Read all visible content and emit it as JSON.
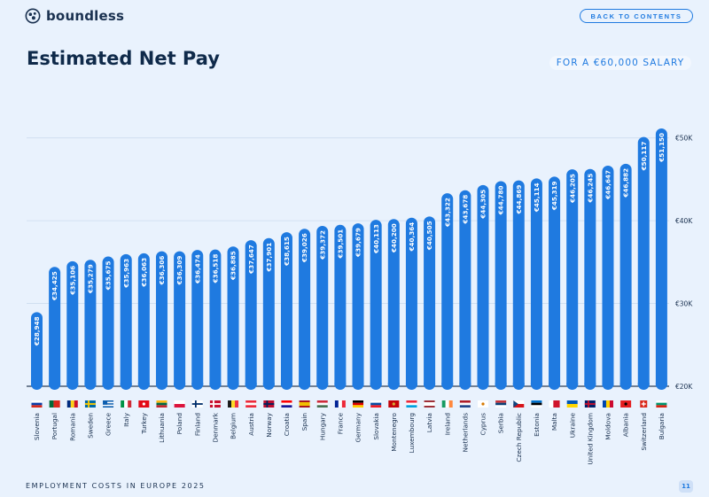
{
  "brand": {
    "name": "boundless"
  },
  "header": {
    "back_label": "BACK TO CONTENTS"
  },
  "page": {
    "title": "Estimated Net Pay",
    "subtitle": "FOR A €60,000 SALARY"
  },
  "footer": {
    "label": "EMPLOYMENT COSTS IN EUROPE 2025",
    "page_number": "11"
  },
  "colors": {
    "bar": "#1f7ae0",
    "background": "#e9f2fd",
    "text": "#0f2a4a",
    "accent": "#1f7ae0"
  },
  "chart_data": {
    "type": "bar",
    "title": "Estimated Net Pay",
    "subtitle": "FOR A €60,000 SALARY",
    "xlabel": "",
    "ylabel": "",
    "ylim": [
      20000,
      52000
    ],
    "yticks": [
      20000,
      30000,
      40000,
      50000
    ],
    "ytick_labels": [
      "€20K",
      "€30K",
      "€40K",
      "€50K"
    ],
    "categories": [
      "Slovenia",
      "Portugal",
      "Romania",
      "Sweden",
      "Greece",
      "Italy",
      "Turkey",
      "Lithuania",
      "Poland",
      "Finland",
      "Denmark",
      "Belgium",
      "Austria",
      "Norway",
      "Croatia",
      "Spain",
      "Hungary",
      "France",
      "Germany",
      "Slovakia",
      "Montenegro",
      "Luxembourg",
      "Latvia",
      "Ireland",
      "Netherlands",
      "Cyprus",
      "Serbia",
      "Czech Republic",
      "Estonia",
      "Malta",
      "Ukraine",
      "United Kingdom",
      "Moldova",
      "Albania",
      "Switzerland",
      "Bulgaria"
    ],
    "values": [
      28948,
      34425,
      35106,
      35279,
      35675,
      35963,
      36063,
      36306,
      36309,
      36474,
      36518,
      36885,
      37647,
      37901,
      38615,
      39026,
      39372,
      39501,
      39679,
      40113,
      40200,
      40364,
      40505,
      43322,
      43678,
      44305,
      44780,
      44869,
      45114,
      45319,
      46205,
      46245,
      46647,
      46882,
      50117,
      51150
    ],
    "value_labels": [
      "€28,948",
      "€34,425",
      "€35,106",
      "€35,279",
      "€35,675",
      "€35,963",
      "€36,063",
      "€36,306",
      "€36,309",
      "€36,474",
      "€36,518",
      "€36,885",
      "€37,647",
      "€37,901",
      "€38,615",
      "€39,026",
      "€39,372",
      "€39,501",
      "€39,679",
      "€40,113",
      "€40,200",
      "€40,364",
      "€40,505",
      "€43,322",
      "€43,678",
      "€44,305",
      "€44,780",
      "€44,869",
      "€45,114",
      "€45,319",
      "€46,205",
      "€46,245",
      "€46,647",
      "€46,882",
      "€50,117",
      "€51,150"
    ],
    "flags": [
      {
        "type": "h",
        "colors": [
          "#ffffff",
          "#0b3ea8",
          "#d52b1e"
        ]
      },
      {
        "type": "vsplit",
        "colors": [
          "#046a38",
          "#da291c"
        ]
      },
      {
        "type": "v",
        "colors": [
          "#002b7f",
          "#fcd116",
          "#ce1126"
        ]
      },
      {
        "type": "nordic",
        "colors": [
          "#006aa7",
          "#fecc00"
        ]
      },
      {
        "type": "stripes",
        "colors": [
          "#0d5eaf",
          "#ffffff"
        ]
      },
      {
        "type": "v",
        "colors": [
          "#009246",
          "#ffffff",
          "#ce2b37"
        ]
      },
      {
        "type": "solid",
        "colors": [
          "#e30a17",
          "#ffffff"
        ]
      },
      {
        "type": "h",
        "colors": [
          "#fdb913",
          "#006a44",
          "#c1272d"
        ]
      },
      {
        "type": "h",
        "colors": [
          "#ffffff",
          "#dc143c"
        ]
      },
      {
        "type": "nordic",
        "colors": [
          "#ffffff",
          "#002f6c"
        ]
      },
      {
        "type": "nordic",
        "colors": [
          "#c8102e",
          "#ffffff"
        ]
      },
      {
        "type": "v",
        "colors": [
          "#1a1a1a",
          "#fdda24",
          "#ef3340"
        ]
      },
      {
        "type": "h",
        "colors": [
          "#ed2939",
          "#ffffff",
          "#ed2939"
        ]
      },
      {
        "type": "nordic",
        "colors": [
          "#ba0c2f",
          "#00205b"
        ]
      },
      {
        "type": "h",
        "colors": [
          "#ff0000",
          "#ffffff",
          "#171796"
        ]
      },
      {
        "type": "h3",
        "colors": [
          "#aa151b",
          "#f1bf00",
          "#aa151b"
        ]
      },
      {
        "type": "h",
        "colors": [
          "#ce2939",
          "#ffffff",
          "#477050"
        ]
      },
      {
        "type": "v",
        "colors": [
          "#002395",
          "#ffffff",
          "#ed2939"
        ]
      },
      {
        "type": "h",
        "colors": [
          "#000000",
          "#dd0000",
          "#ffce00"
        ]
      },
      {
        "type": "h",
        "colors": [
          "#ffffff",
          "#0b4ea2",
          "#ee1c25"
        ]
      },
      {
        "type": "solid",
        "colors": [
          "#c40308",
          "#d4af37"
        ]
      },
      {
        "type": "h",
        "colors": [
          "#ed2939",
          "#ffffff",
          "#00a1de"
        ]
      },
      {
        "type": "h3",
        "colors": [
          "#9e3039",
          "#ffffff",
          "#9e3039"
        ]
      },
      {
        "type": "v",
        "colors": [
          "#169b62",
          "#ffffff",
          "#ff883e"
        ]
      },
      {
        "type": "h",
        "colors": [
          "#ae1c28",
          "#ffffff",
          "#21468b"
        ]
      },
      {
        "type": "solid",
        "colors": [
          "#ffffff",
          "#d57800"
        ]
      },
      {
        "type": "h",
        "colors": [
          "#c6363c",
          "#0c4076",
          "#ffffff"
        ]
      },
      {
        "type": "czech",
        "colors": [
          "#ffffff",
          "#d7141a",
          "#11457e"
        ]
      },
      {
        "type": "h",
        "colors": [
          "#0072ce",
          "#000000",
          "#ffffff"
        ]
      },
      {
        "type": "vsplit",
        "colors": [
          "#ffffff",
          "#cf142b"
        ]
      },
      {
        "type": "h",
        "colors": [
          "#0057b7",
          "#ffd700"
        ]
      },
      {
        "type": "nordic",
        "colors": [
          "#012169",
          "#c8102e"
        ]
      },
      {
        "type": "v",
        "colors": [
          "#0046ae",
          "#ffd200",
          "#cc092f"
        ]
      },
      {
        "type": "solid",
        "colors": [
          "#e41e20",
          "#000000"
        ]
      },
      {
        "type": "swiss",
        "colors": [
          "#da291c",
          "#ffffff"
        ]
      },
      {
        "type": "h",
        "colors": [
          "#ffffff",
          "#00966e",
          "#d62612"
        ]
      }
    ]
  }
}
